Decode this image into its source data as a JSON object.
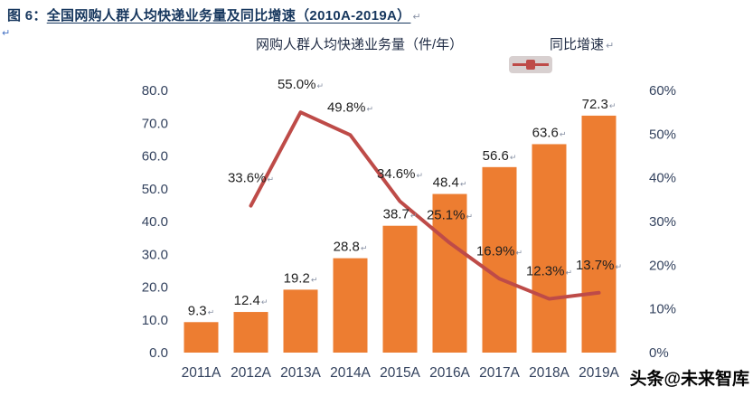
{
  "figure": {
    "caption_prefix": "图 6：",
    "caption_body": "全国网购人群人均快递业务量及同比增速（2010A-2019A）",
    "return_mark": "↵",
    "left_return_mark": "↵"
  },
  "legend": {
    "bars_label": "网购人群人均快递业务量（件/年）",
    "line_label": "同比增速",
    "return_mark": "↵"
  },
  "watermark": "头条@未来智库",
  "colors": {
    "bar": "#ED7D31",
    "line": "#BE4B48",
    "axis_text": "#33425E",
    "data_label": "#1F1F1F",
    "caption": "#17375E",
    "return_mark": "#8A93A6"
  },
  "chart_data": {
    "type": "bar+line",
    "title": "全国网购人群人均快递业务量及同比增速（2010A-2019A）",
    "categories": [
      "2011A",
      "2012A",
      "2013A",
      "2014A",
      "2015A",
      "2016A",
      "2017A",
      "2018A",
      "2019A"
    ],
    "series": [
      {
        "name": "网购人群人均快递业务量（件/年）",
        "type": "bar",
        "axis": "left",
        "values": [
          9.3,
          12.4,
          19.2,
          28.8,
          38.7,
          48.4,
          56.6,
          63.6,
          72.3
        ],
        "labels": [
          "9.3",
          "12.4",
          "19.2",
          "28.8",
          "38.7",
          "48.4",
          "56.6",
          "63.6",
          "72.3"
        ]
      },
      {
        "name": "同比增速",
        "type": "line",
        "axis": "right",
        "start_index": 1,
        "values": [
          33.6,
          55.0,
          49.8,
          34.6,
          25.1,
          16.9,
          12.3,
          13.7
        ],
        "labels": [
          "33.6%",
          "55.0%",
          "49.8%",
          "34.6%",
          "25.1%",
          "16.9%",
          "12.3%",
          "13.7%"
        ]
      }
    ],
    "left_axis": {
      "min": 0,
      "max": 80,
      "ticks": [
        "0.0",
        "10.0",
        "20.0",
        "30.0",
        "40.0",
        "50.0",
        "60.0",
        "70.0",
        "80.0"
      ]
    },
    "right_axis": {
      "min": 0,
      "max": 60,
      "ticks": [
        "0%",
        "10%",
        "20%",
        "30%",
        "40%",
        "50%",
        "60%"
      ]
    },
    "legend_position": "top",
    "grid": false
  }
}
